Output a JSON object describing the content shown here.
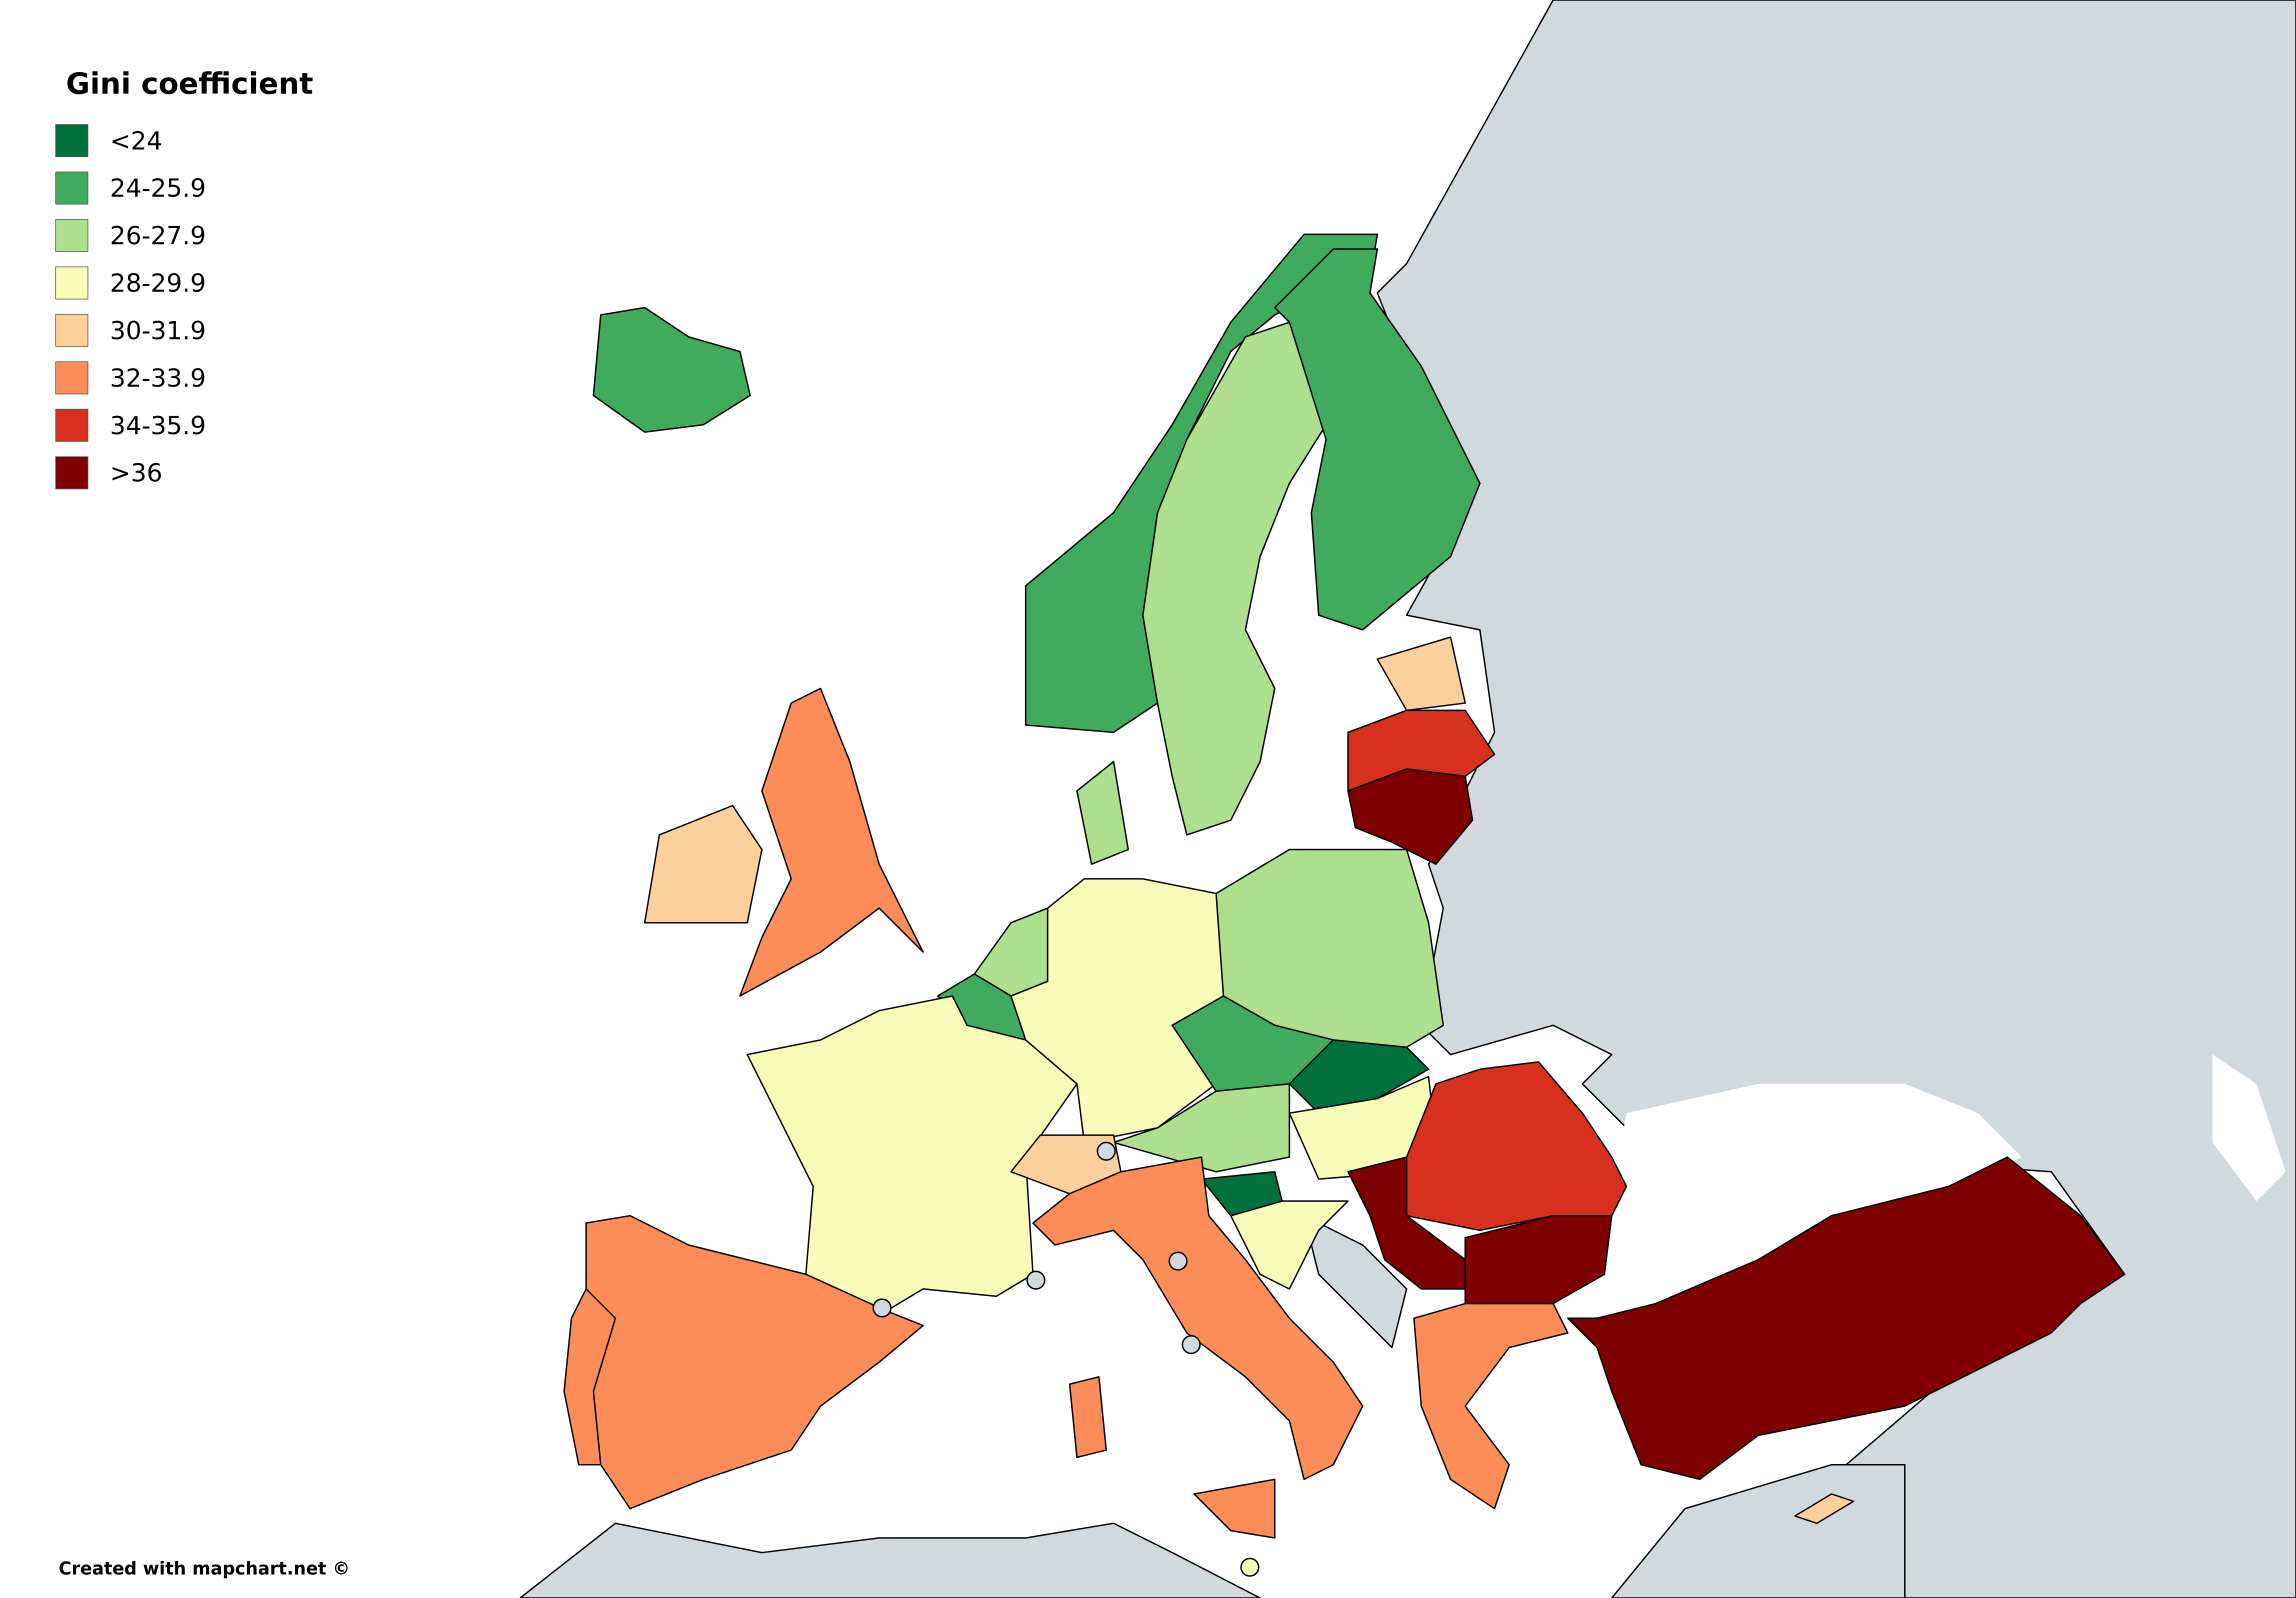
{
  "legend": {
    "title": "Gini coefficient",
    "items": [
      {
        "label": "<24",
        "color": "#00703c"
      },
      {
        "label": "24-25.9",
        "color": "#41ab5d"
      },
      {
        "label": "26-27.9",
        "color": "#addf8e"
      },
      {
        "label": "28-29.9",
        "color": "#f7fcb9"
      },
      {
        "label": "30-31.9",
        "color": "#fdd09b"
      },
      {
        "label": "32-33.9",
        "color": "#fc8d59"
      },
      {
        "label": "34-35.9",
        "color": "#d7301f"
      },
      {
        "label": ">36",
        "color": "#7f0000"
      }
    ]
  },
  "credit": "Created with mapchart.net ©"
}
